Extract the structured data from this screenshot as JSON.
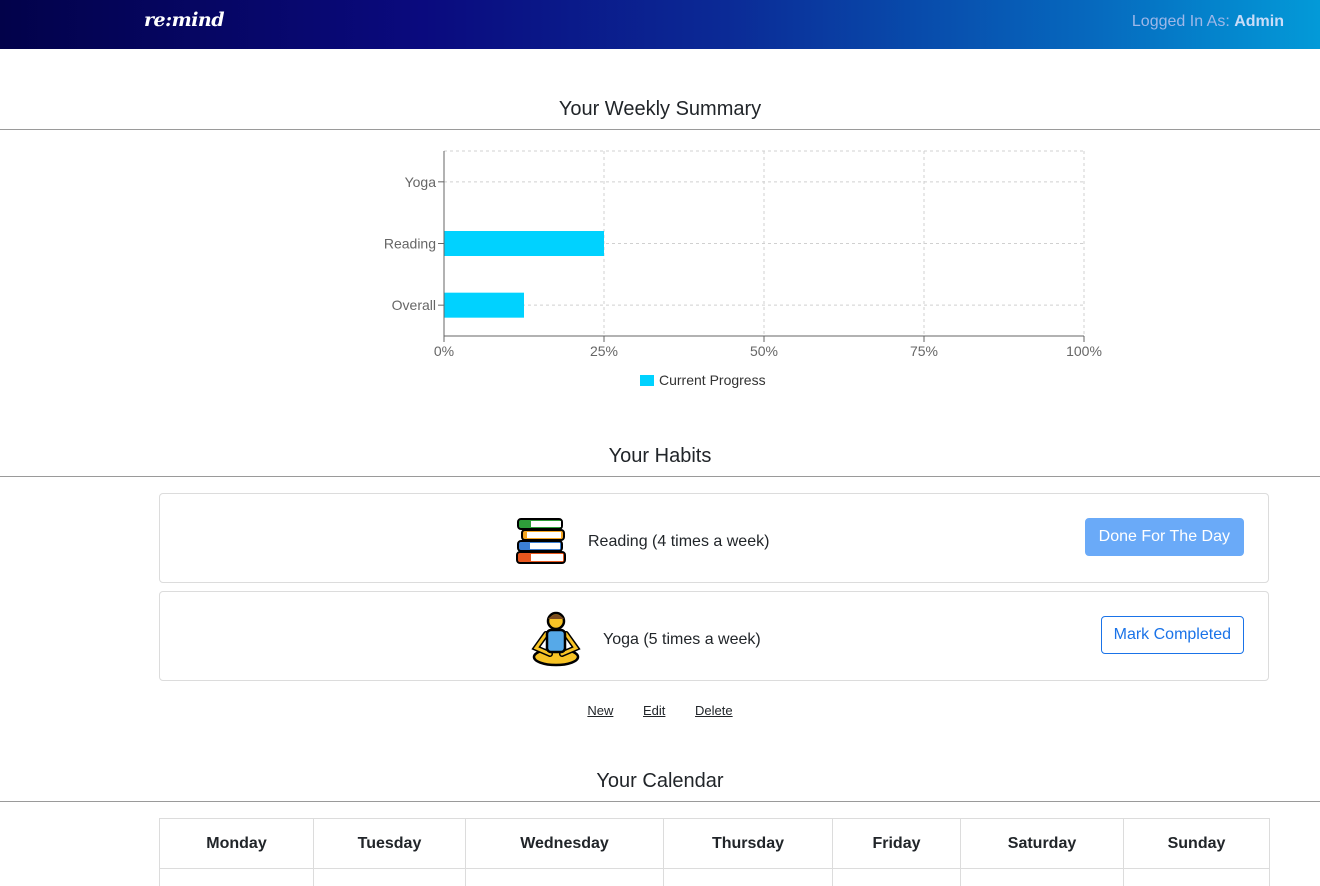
{
  "navbar": {
    "brand": "re:mind",
    "logged_in_label": "Logged In As:",
    "username": "Admin"
  },
  "summary": {
    "title": "Your Weekly Summary"
  },
  "chart_data": {
    "type": "bar",
    "orientation": "horizontal",
    "categories": [
      "Yoga",
      "Reading",
      "Overall"
    ],
    "series": [
      {
        "name": "Current Progress",
        "values": [
          0,
          25,
          12.5
        ],
        "color": "#00d2ff"
      }
    ],
    "x_ticks": [
      "0%",
      "25%",
      "50%",
      "75%",
      "100%"
    ],
    "xlim": [
      0,
      100
    ],
    "grid": true,
    "legend_position": "bottom"
  },
  "habits": {
    "title": "Your Habits",
    "items": [
      {
        "icon": "books-icon",
        "name": "Reading (4 times a week)",
        "button": "Done For The Day",
        "button_style": "solid"
      },
      {
        "icon": "yoga-icon",
        "name": "Yoga (5 times a week)",
        "button": "Mark Completed",
        "button_style": "outline"
      }
    ],
    "links": {
      "new": "New",
      "edit": "Edit",
      "delete": "Delete"
    }
  },
  "calendar": {
    "title": "Your Calendar",
    "days": [
      "Monday",
      "Tuesday",
      "Wednesday",
      "Thursday",
      "Friday",
      "Saturday",
      "Sunday"
    ]
  },
  "colors": {
    "accent": "#00d2ff",
    "primary": "#1a73e8",
    "button_solid": "#6aaaf8"
  }
}
